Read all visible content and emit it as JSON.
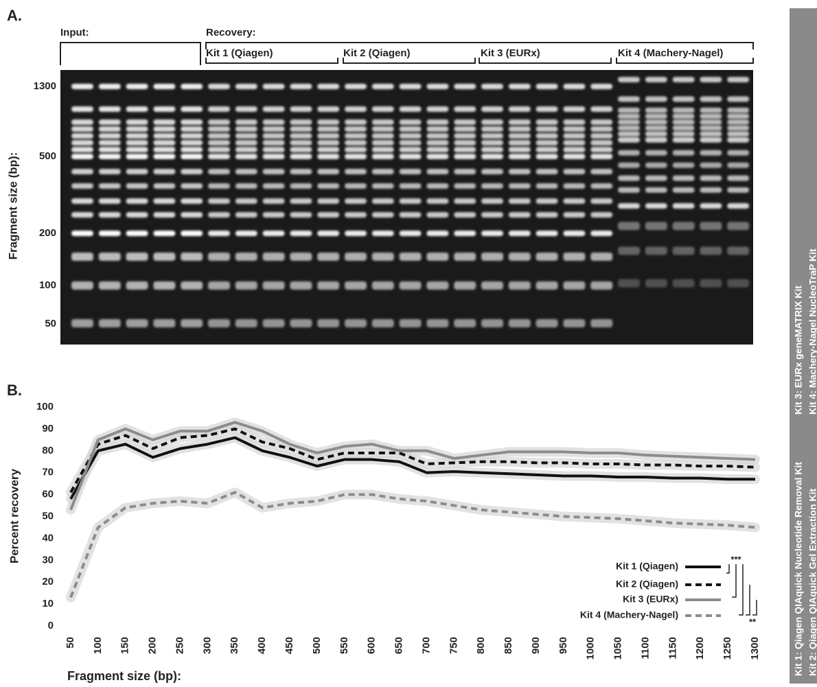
{
  "gel": {
    "panel_label": "A.",
    "input_label": "Input:",
    "recovery_label": "Recovery:",
    "kits": [
      "Kit 1 (Qiagen)",
      "Kit 2 (Qiagen)",
      "Kit 3 (EURx)",
      "Kit 4 (Machery-Nagel)"
    ],
    "size_labels": [
      "1300",
      "500",
      "200",
      "100",
      "50"
    ],
    "ylabel": "Fragment size (bp):"
  },
  "chart_data": {
    "type": "line",
    "panel_label": "B.",
    "xlabel": "Fragment size (bp):",
    "ylabel": "Percent recovery",
    "x": [
      50,
      100,
      150,
      200,
      250,
      300,
      350,
      400,
      450,
      500,
      550,
      600,
      650,
      700,
      750,
      800,
      850,
      900,
      950,
      1000,
      1050,
      1100,
      1150,
      1200,
      1250,
      1300
    ],
    "xlim": [
      50,
      1300
    ],
    "xticks": [
      50,
      100,
      150,
      200,
      250,
      300,
      350,
      400,
      450,
      500,
      550,
      600,
      650,
      700,
      750,
      800,
      850,
      900,
      950,
      1000,
      1050,
      1100,
      1150,
      1200,
      1250,
      1300
    ],
    "ylim": [
      0,
      100
    ],
    "yticks": [
      0,
      10,
      20,
      30,
      40,
      50,
      60,
      70,
      80,
      90,
      100
    ],
    "series": [
      {
        "name": "Kit 1 (Qiagen)",
        "color": "#111111",
        "line_style": "solid",
        "values": [
          58,
          80,
          83,
          77,
          81,
          83,
          86,
          80,
          77,
          73,
          76,
          76,
          75,
          70,
          70.5,
          70,
          69.5,
          69,
          68.5,
          68.5,
          68,
          68,
          67.5,
          67.5,
          67,
          67
        ]
      },
      {
        "name": "Kit 2 (Qiagen)",
        "color": "#111111",
        "line_style": "dashed",
        "values": [
          61,
          83,
          87,
          81,
          86,
          87,
          90,
          84,
          81,
          76,
          79,
          79,
          79,
          74,
          74.5,
          75,
          75,
          74.5,
          74.5,
          74,
          74,
          73.5,
          73.5,
          73,
          73,
          72.5
        ]
      },
      {
        "name": "Kit 3 (EURx)",
        "color": "#8c8c8c",
        "line_style": "solid",
        "values": [
          53,
          85,
          90,
          85,
          89,
          89,
          93,
          89,
          83,
          79,
          82,
          83,
          80,
          80,
          76.5,
          78,
          79.5,
          79.5,
          79.5,
          79,
          79,
          78,
          77.5,
          77,
          76.5,
          76
        ]
      },
      {
        "name": "Kit 4 (Machery-Nagel)",
        "color": "#8c8c8c",
        "line_style": "dashed",
        "values": [
          13,
          45,
          54,
          56,
          57,
          56,
          61,
          54,
          56,
          57,
          60,
          60,
          58,
          57,
          55,
          53,
          52,
          51,
          50,
          49.5,
          49,
          48,
          47,
          46.5,
          46,
          45
        ]
      }
    ],
    "significance": [
      "***",
      "**"
    ]
  },
  "sidebar": {
    "lines": [
      "Kit 1: Qiagen QIAquick Nucleotide Removal Kit",
      "Kit 2: Qiagen QIAquick Gel Extraction Kit",
      "Kit 3: EURx geneMATRIX Kit",
      "Kit 4: Machery-Nagel NucleoTraP Kit"
    ]
  }
}
